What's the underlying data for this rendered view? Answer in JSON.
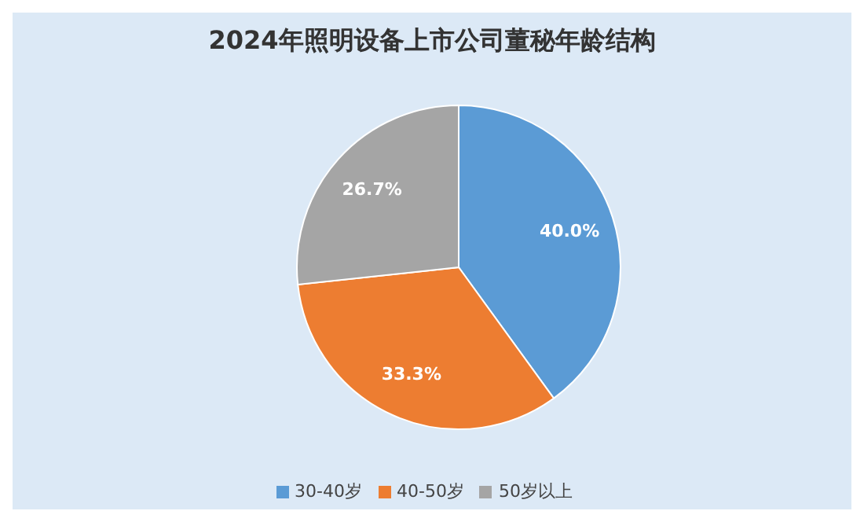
{
  "chart_data": {
    "type": "pie",
    "title": "2024年照明设备上市公司董秘年龄结构",
    "categories": [
      "30-40岁",
      "40-50岁",
      "50岁以上"
    ],
    "values": [
      40.0,
      33.3,
      26.7
    ],
    "colors": [
      "#5b9bd5",
      "#ed7d31",
      "#a5a5a5"
    ],
    "value_labels": [
      "40.0%",
      "33.3%",
      "26.7%"
    ],
    "legend": "bottom"
  }
}
